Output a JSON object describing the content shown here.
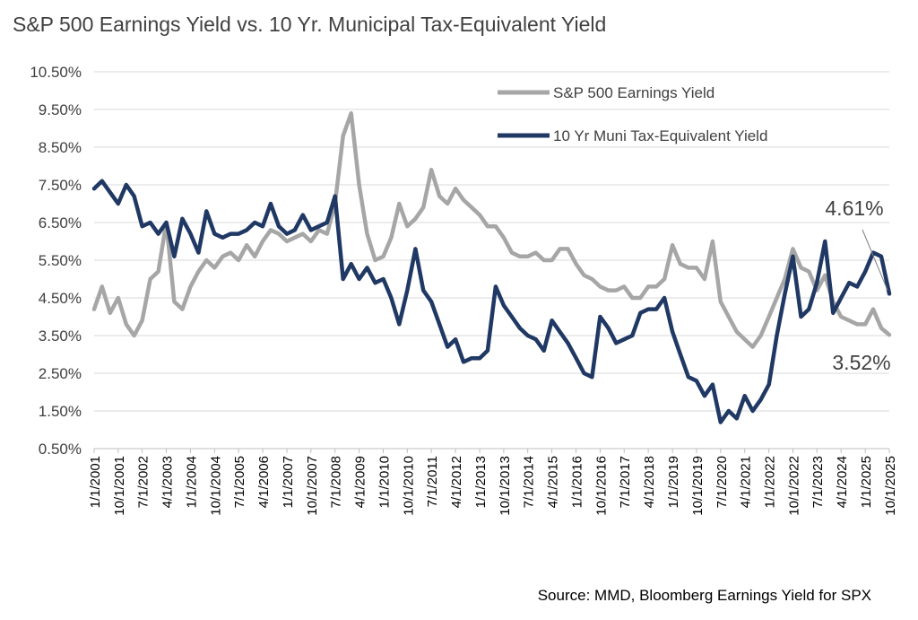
{
  "chart_data": {
    "type": "line",
    "title": "S&P 500 Earnings Yield vs. 10 Yr. Municipal Tax-Equivalent Yield",
    "source": "Source: MMD, Bloomberg Earnings Yield for SPX",
    "xlabel": "",
    "ylabel": "",
    "x_range": [
      "2001-01-01",
      "2025-10-01"
    ],
    "ylim": [
      0.5,
      10.5
    ],
    "y_ticks": [
      "0.50%",
      "1.50%",
      "2.50%",
      "3.50%",
      "4.50%",
      "5.50%",
      "6.50%",
      "7.50%",
      "8.50%",
      "9.50%",
      "10.50%"
    ],
    "x_ticks": [
      "1/1/2001",
      "10/1/2001",
      "7/1/2002",
      "4/1/2003",
      "1/1/2004",
      "10/1/2004",
      "7/1/2005",
      "4/1/2006",
      "1/1/2007",
      "10/1/2007",
      "7/1/2008",
      "4/1/2009",
      "1/1/2010",
      "10/1/2010",
      "7/1/2011",
      "4/1/2012",
      "1/1/2013",
      "10/1/2013",
      "7/1/2014",
      "4/1/2015",
      "1/1/2016",
      "10/1/2016",
      "7/1/2017",
      "4/1/2018",
      "1/1/2019",
      "10/1/2019",
      "7/1/2020",
      "4/1/2021",
      "1/1/2022",
      "10/1/2022",
      "7/1/2023",
      "4/1/2024",
      "1/1/2025",
      "10/1/2025"
    ],
    "grid": "horizontal",
    "legend": "top-right",
    "series": [
      {
        "name": "S&P 500 Earnings Yield",
        "color": "#a6a6a6",
        "points": [
          [
            "2001-01-01",
            4.2
          ],
          [
            "2001-04-01",
            4.8
          ],
          [
            "2001-07-01",
            4.1
          ],
          [
            "2001-10-01",
            4.5
          ],
          [
            "2002-01-01",
            3.8
          ],
          [
            "2002-04-01",
            3.5
          ],
          [
            "2002-07-01",
            3.9
          ],
          [
            "2002-10-01",
            5.0
          ],
          [
            "2003-01-01",
            5.2
          ],
          [
            "2003-04-01",
            6.5
          ],
          [
            "2003-07-01",
            4.4
          ],
          [
            "2003-10-01",
            4.2
          ],
          [
            "2004-01-01",
            4.8
          ],
          [
            "2004-04-01",
            5.2
          ],
          [
            "2004-07-01",
            5.5
          ],
          [
            "2004-10-01",
            5.3
          ],
          [
            "2005-01-01",
            5.6
          ],
          [
            "2005-04-01",
            5.7
          ],
          [
            "2005-07-01",
            5.5
          ],
          [
            "2005-10-01",
            5.9
          ],
          [
            "2006-01-01",
            5.6
          ],
          [
            "2006-04-01",
            6.0
          ],
          [
            "2006-07-01",
            6.3
          ],
          [
            "2006-10-01",
            6.2
          ],
          [
            "2007-01-01",
            6.0
          ],
          [
            "2007-04-01",
            6.1
          ],
          [
            "2007-07-01",
            6.2
          ],
          [
            "2007-10-01",
            6.0
          ],
          [
            "2008-01-01",
            6.3
          ],
          [
            "2008-04-01",
            6.2
          ],
          [
            "2008-07-01",
            7.0
          ],
          [
            "2008-10-01",
            8.8
          ],
          [
            "2009-01-01",
            9.4
          ],
          [
            "2009-04-01",
            7.5
          ],
          [
            "2009-07-01",
            6.2
          ],
          [
            "2009-10-01",
            5.5
          ],
          [
            "2010-01-01",
            5.6
          ],
          [
            "2010-04-01",
            6.1
          ],
          [
            "2010-07-01",
            7.0
          ],
          [
            "2010-10-01",
            6.4
          ],
          [
            "2011-01-01",
            6.6
          ],
          [
            "2011-04-01",
            6.9
          ],
          [
            "2011-07-01",
            7.9
          ],
          [
            "2011-10-01",
            7.2
          ],
          [
            "2012-01-01",
            7.0
          ],
          [
            "2012-04-01",
            7.4
          ],
          [
            "2012-07-01",
            7.1
          ],
          [
            "2012-10-01",
            6.9
          ],
          [
            "2013-01-01",
            6.7
          ],
          [
            "2013-04-01",
            6.4
          ],
          [
            "2013-07-01",
            6.4
          ],
          [
            "2013-10-01",
            6.1
          ],
          [
            "2014-01-01",
            5.7
          ],
          [
            "2014-04-01",
            5.6
          ],
          [
            "2014-07-01",
            5.6
          ],
          [
            "2014-10-01",
            5.7
          ],
          [
            "2015-01-01",
            5.5
          ],
          [
            "2015-04-01",
            5.5
          ],
          [
            "2015-07-01",
            5.8
          ],
          [
            "2015-10-01",
            5.8
          ],
          [
            "2016-01-01",
            5.4
          ],
          [
            "2016-04-01",
            5.1
          ],
          [
            "2016-07-01",
            5.0
          ],
          [
            "2016-10-01",
            4.8
          ],
          [
            "2017-01-01",
            4.7
          ],
          [
            "2017-04-01",
            4.7
          ],
          [
            "2017-07-01",
            4.8
          ],
          [
            "2017-10-01",
            4.5
          ],
          [
            "2018-01-01",
            4.5
          ],
          [
            "2018-04-01",
            4.8
          ],
          [
            "2018-07-01",
            4.8
          ],
          [
            "2018-10-01",
            5.0
          ],
          [
            "2019-01-01",
            5.9
          ],
          [
            "2019-04-01",
            5.4
          ],
          [
            "2019-07-01",
            5.3
          ],
          [
            "2019-10-01",
            5.3
          ],
          [
            "2020-01-01",
            5.0
          ],
          [
            "2020-04-01",
            6.0
          ],
          [
            "2020-07-01",
            4.4
          ],
          [
            "2020-10-01",
            4.0
          ],
          [
            "2021-01-01",
            3.6
          ],
          [
            "2021-04-01",
            3.4
          ],
          [
            "2021-07-01",
            3.2
          ],
          [
            "2021-10-01",
            3.5
          ],
          [
            "2022-01-01",
            4.0
          ],
          [
            "2022-04-01",
            4.5
          ],
          [
            "2022-07-01",
            5.0
          ],
          [
            "2022-10-01",
            5.8
          ],
          [
            "2023-01-01",
            5.3
          ],
          [
            "2023-04-01",
            5.2
          ],
          [
            "2023-07-01",
            4.7
          ],
          [
            "2023-10-01",
            5.1
          ],
          [
            "2024-01-01",
            4.4
          ],
          [
            "2024-04-01",
            4.0
          ],
          [
            "2024-07-01",
            3.9
          ],
          [
            "2024-10-01",
            3.8
          ],
          [
            "2025-01-01",
            3.8
          ],
          [
            "2025-04-01",
            4.2
          ],
          [
            "2025-07-01",
            3.7
          ],
          [
            "2025-10-01",
            3.52
          ]
        ]
      },
      {
        "name": "10 Yr Muni Tax-Equivalent Yield",
        "color": "#203864",
        "points": [
          [
            "2001-01-01",
            7.4
          ],
          [
            "2001-04-01",
            7.6
          ],
          [
            "2001-07-01",
            7.3
          ],
          [
            "2001-10-01",
            7.0
          ],
          [
            "2002-01-01",
            7.5
          ],
          [
            "2002-04-01",
            7.2
          ],
          [
            "2002-07-01",
            6.4
          ],
          [
            "2002-10-01",
            6.5
          ],
          [
            "2003-01-01",
            6.2
          ],
          [
            "2003-04-01",
            6.5
          ],
          [
            "2003-07-01",
            5.6
          ],
          [
            "2003-10-01",
            6.6
          ],
          [
            "2004-01-01",
            6.2
          ],
          [
            "2004-04-01",
            5.7
          ],
          [
            "2004-07-01",
            6.8
          ],
          [
            "2004-10-01",
            6.2
          ],
          [
            "2005-01-01",
            6.1
          ],
          [
            "2005-04-01",
            6.2
          ],
          [
            "2005-07-01",
            6.2
          ],
          [
            "2005-10-01",
            6.3
          ],
          [
            "2006-01-01",
            6.5
          ],
          [
            "2006-04-01",
            6.4
          ],
          [
            "2006-07-01",
            7.0
          ],
          [
            "2006-10-01",
            6.4
          ],
          [
            "2007-01-01",
            6.2
          ],
          [
            "2007-04-01",
            6.3
          ],
          [
            "2007-07-01",
            6.7
          ],
          [
            "2007-10-01",
            6.3
          ],
          [
            "2008-01-01",
            6.4
          ],
          [
            "2008-04-01",
            6.5
          ],
          [
            "2008-07-01",
            7.2
          ],
          [
            "2008-10-01",
            5.0
          ],
          [
            "2009-01-01",
            5.4
          ],
          [
            "2009-04-01",
            5.0
          ],
          [
            "2009-07-01",
            5.3
          ],
          [
            "2009-10-01",
            4.9
          ],
          [
            "2010-01-01",
            5.0
          ],
          [
            "2010-04-01",
            4.5
          ],
          [
            "2010-07-01",
            3.8
          ],
          [
            "2010-10-01",
            4.7
          ],
          [
            "2011-01-01",
            5.8
          ],
          [
            "2011-04-01",
            4.7
          ],
          [
            "2011-07-01",
            4.4
          ],
          [
            "2011-10-01",
            3.8
          ],
          [
            "2012-01-01",
            3.2
          ],
          [
            "2012-04-01",
            3.4
          ],
          [
            "2012-07-01",
            2.8
          ],
          [
            "2012-10-01",
            2.9
          ],
          [
            "2013-01-01",
            2.9
          ],
          [
            "2013-04-01",
            3.1
          ],
          [
            "2013-07-01",
            4.8
          ],
          [
            "2013-10-01",
            4.3
          ],
          [
            "2014-01-01",
            4.0
          ],
          [
            "2014-04-01",
            3.7
          ],
          [
            "2014-07-01",
            3.5
          ],
          [
            "2014-10-01",
            3.4
          ],
          [
            "2015-01-01",
            3.1
          ],
          [
            "2015-04-01",
            3.9
          ],
          [
            "2015-07-01",
            3.6
          ],
          [
            "2015-10-01",
            3.3
          ],
          [
            "2016-01-01",
            2.9
          ],
          [
            "2016-04-01",
            2.5
          ],
          [
            "2016-07-01",
            2.4
          ],
          [
            "2016-10-01",
            4.0
          ],
          [
            "2017-01-01",
            3.7
          ],
          [
            "2017-04-01",
            3.3
          ],
          [
            "2017-07-01",
            3.4
          ],
          [
            "2017-10-01",
            3.5
          ],
          [
            "2018-01-01",
            4.1
          ],
          [
            "2018-04-01",
            4.2
          ],
          [
            "2018-07-01",
            4.2
          ],
          [
            "2018-10-01",
            4.5
          ],
          [
            "2019-01-01",
            3.6
          ],
          [
            "2019-04-01",
            3.0
          ],
          [
            "2019-07-01",
            2.4
          ],
          [
            "2019-10-01",
            2.3
          ],
          [
            "2020-01-01",
            1.9
          ],
          [
            "2020-04-01",
            2.2
          ],
          [
            "2020-07-01",
            1.2
          ],
          [
            "2020-10-01",
            1.5
          ],
          [
            "2021-01-01",
            1.3
          ],
          [
            "2021-04-01",
            1.9
          ],
          [
            "2021-07-01",
            1.5
          ],
          [
            "2021-10-01",
            1.8
          ],
          [
            "2022-01-01",
            2.2
          ],
          [
            "2022-04-01",
            3.5
          ],
          [
            "2022-07-01",
            4.6
          ],
          [
            "2022-10-01",
            5.6
          ],
          [
            "2023-01-01",
            4.0
          ],
          [
            "2023-04-01",
            4.2
          ],
          [
            "2023-07-01",
            4.9
          ],
          [
            "2023-10-01",
            6.0
          ],
          [
            "2024-01-01",
            4.1
          ],
          [
            "2024-04-01",
            4.5
          ],
          [
            "2024-07-01",
            4.9
          ],
          [
            "2024-10-01",
            4.8
          ],
          [
            "2025-01-01",
            5.2
          ],
          [
            "2025-04-01",
            5.7
          ],
          [
            "2025-07-01",
            5.6
          ],
          [
            "2025-10-01",
            4.61
          ]
        ]
      }
    ],
    "annotations": [
      {
        "text": "4.61%",
        "series": "10 Yr Muni Tax-Equivalent Yield",
        "x": "2025-10-01",
        "y": 4.61
      },
      {
        "text": "3.52%",
        "series": "S&P 500 Earnings Yield",
        "x": "2025-10-01",
        "y": 3.52
      }
    ]
  }
}
